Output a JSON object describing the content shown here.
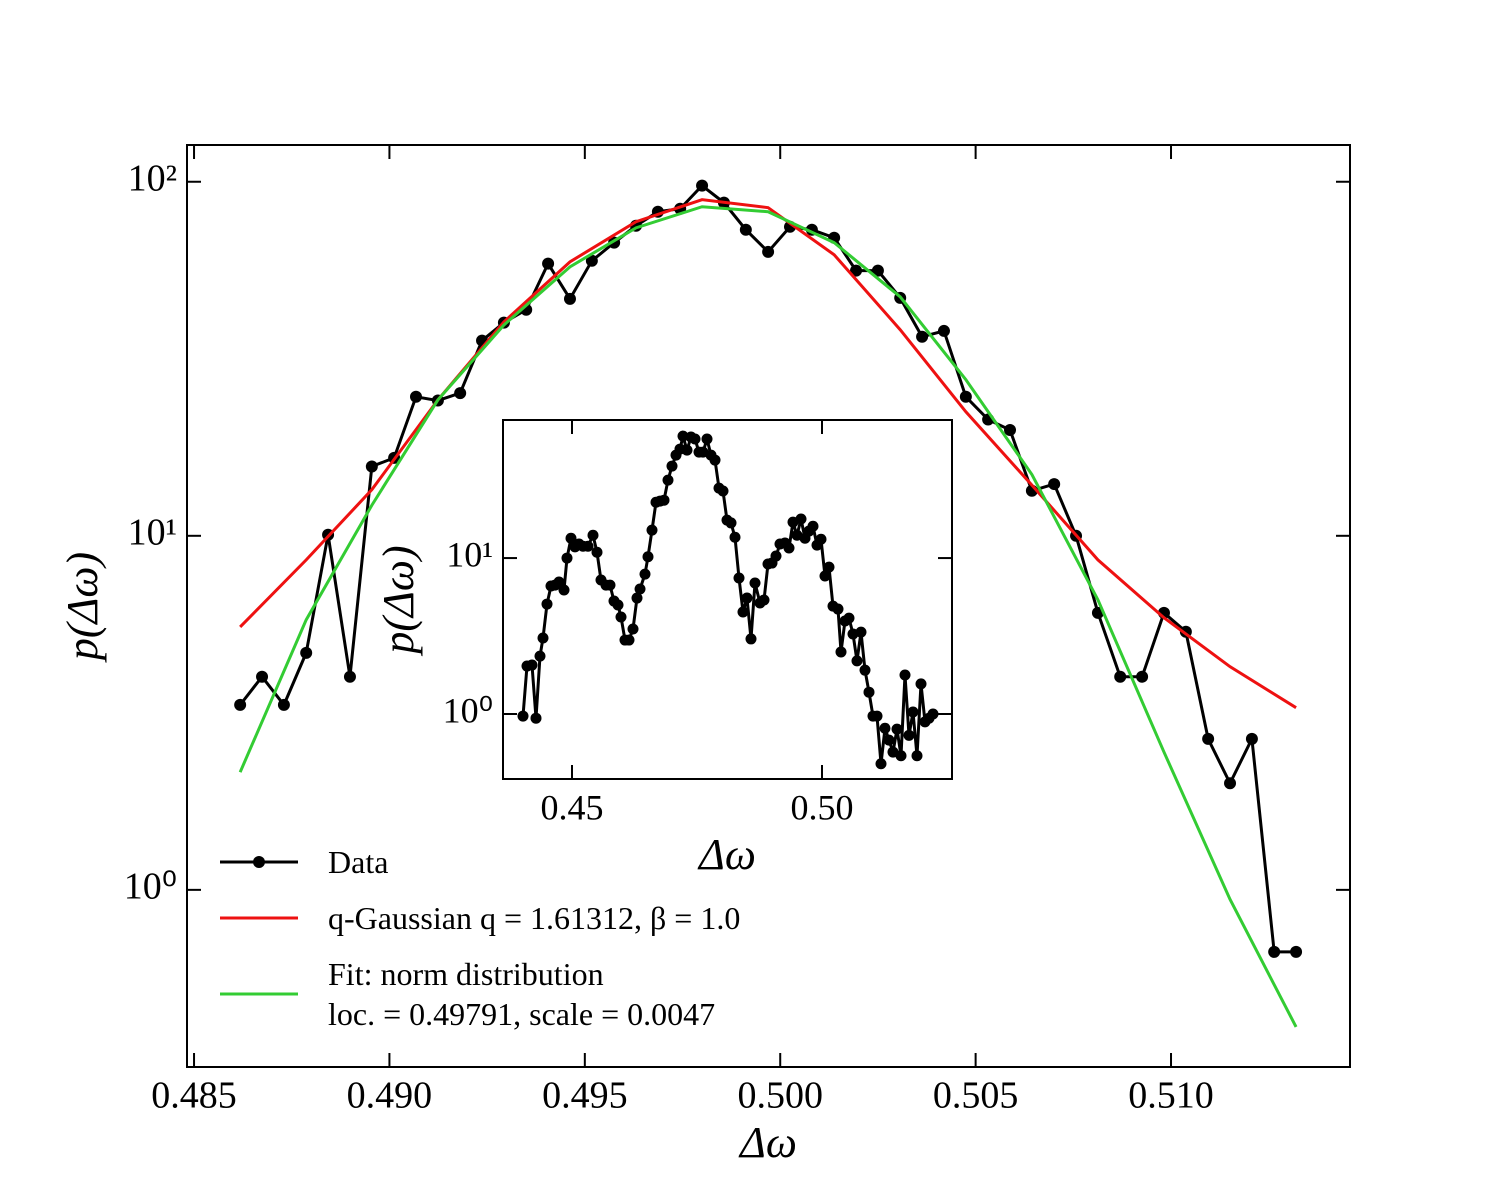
{
  "chart_data": [
    {
      "type": "line",
      "xlabel": "Δω",
      "ylabel": "p(Δω)",
      "yscale": "log",
      "legend": "lower left",
      "xlim": [
        0.48482,
        0.51458
      ],
      "ylim": [
        0.316,
        127
      ],
      "xticks": [
        0.485,
        {
          "value": 0.49,
          "label": "0.490"
        },
        0.495,
        {
          "value": 0.5,
          "label": "0.500"
        },
        0.505,
        {
          "value": 0.51,
          "label": "0.510"
        }
      ],
      "yticks": [
        {
          "value": 1,
          "label": "10⁰"
        },
        {
          "value": 10,
          "label": "10¹"
        },
        {
          "value": 100,
          "label": "10²"
        }
      ],
      "series": [
        {
          "name": "Data",
          "color": "#000000",
          "markers": true,
          "x": [
            0.48618,
            0.48674,
            0.4873,
            0.48787,
            0.48843,
            0.48899,
            0.48955,
            0.49012,
            0.49068,
            0.49124,
            0.49181,
            0.49237,
            0.49293,
            0.4935,
            0.49406,
            0.49462,
            0.49518,
            0.49575,
            0.49631,
            0.49687,
            0.49744,
            0.498,
            0.49856,
            0.49912,
            0.49969,
            0.50025,
            0.50081,
            0.50138,
            0.50194,
            0.5025,
            0.50307,
            0.50363,
            0.50419,
            0.50475,
            0.50532,
            0.50588,
            0.50644,
            0.50701,
            0.50757,
            0.50813,
            0.5087,
            0.50926,
            0.50982,
            0.51038,
            0.51095,
            0.51151,
            0.51207,
            0.51264,
            0.5132
          ],
          "values": [
            3.33,
            4.0,
            3.33,
            4.67,
            10.07,
            4.0,
            15.7,
            16.6,
            24.7,
            24.1,
            25.3,
            35.6,
            40.0,
            43.5,
            58.7,
            46.7,
            59.8,
            67.3,
            75.1,
            82.3,
            83.9,
            97.5,
            87.3,
            73.2,
            63.4,
            74.6,
            73.2,
            69.5,
            56.1,
            56.1,
            47.0,
            36.5,
            37.9,
            24.7,
            21.3,
            19.9,
            13.4,
            14.0,
            10.0,
            6.06,
            4.0,
            4.0,
            6.06,
            5.36,
            2.67,
            2.0,
            2.67,
            0.668,
            0.668
          ]
        },
        {
          "name": "q-Gaussian q = 1.61312, β = 1.0",
          "color": "#ee1111",
          "markers": false,
          "x": [
            0.48618,
            0.48787,
            0.48955,
            0.49124,
            0.49293,
            0.49462,
            0.49631,
            0.498,
            0.49969,
            0.50138,
            0.50307,
            0.50475,
            0.50644,
            0.50813,
            0.50982,
            0.51151,
            0.5132
          ],
          "values": [
            5.53,
            8.55,
            13.5,
            24.2,
            40.2,
            59.4,
            77.1,
            89.0,
            84.5,
            62.2,
            38.2,
            22.4,
            13.9,
            8.55,
            5.87,
            4.27,
            3.27
          ]
        },
        {
          "name": "Fit: norm distribution\nloc. = 0.49791, scale = 0.0047",
          "color": "#33cc33",
          "markers": false,
          "x": [
            0.48618,
            0.48787,
            0.48955,
            0.49124,
            0.49293,
            0.49462,
            0.49631,
            0.498,
            0.49969,
            0.50138,
            0.50307,
            0.50475,
            0.50644,
            0.50813,
            0.50982,
            0.51151,
            0.5132
          ],
          "values": [
            2.15,
            5.79,
            12.2,
            24.2,
            39.4,
            57.5,
            74.1,
            85.0,
            82.3,
            67.3,
            47.3,
            27.6,
            14.9,
            6.59,
            2.45,
            0.94,
            0.41
          ]
        }
      ]
    },
    {
      "type": "line",
      "xlabel": "Δω",
      "ylabel": "p(Δω)",
      "yscale": "log",
      "xlim": [
        0.4362,
        0.526
      ],
      "ylim": [
        0.383,
        76.8
      ],
      "xticks": [
        0.45,
        {
          "value": 0.5,
          "label": "0.50"
        }
      ],
      "yticks": [
        {
          "value": 1,
          "label": "10⁰"
        },
        {
          "value": 10,
          "label": "10¹"
        }
      ],
      "series": [
        {
          "color": "#000000",
          "markers": true,
          "x": [
            0.4402,
            0.441,
            0.442,
            0.4428,
            0.4436,
            0.4442,
            0.445,
            0.4458,
            0.4466,
            0.4474,
            0.4484,
            0.449,
            0.4498,
            0.4506,
            0.4514,
            0.4522,
            0.4532,
            0.4542,
            0.455,
            0.4558,
            0.4568,
            0.4576,
            0.4584,
            0.4592,
            0.4598,
            0.4606,
            0.4614,
            0.4622,
            0.463,
            0.4636,
            0.4646,
            0.4652,
            0.466,
            0.4668,
            0.4676,
            0.4684,
            0.4692,
            0.47,
            0.4708,
            0.4716,
            0.4722,
            0.473,
            0.4738,
            0.4746,
            0.4754,
            0.4762,
            0.477,
            0.4778,
            0.4786,
            0.4794,
            0.4802,
            0.481,
            0.4818,
            0.4826,
            0.4834,
            0.4842,
            0.485,
            0.4858,
            0.4866,
            0.4876,
            0.4884,
            0.4892,
            0.49,
            0.4908,
            0.4916,
            0.4926,
            0.4934,
            0.4942,
            0.495,
            0.4958,
            0.4966,
            0.4974,
            0.4982,
            0.499,
            0.4998,
            0.5006,
            0.5014,
            0.5022,
            0.5032,
            0.5038,
            0.5046,
            0.5054,
            0.5062,
            0.507,
            0.5078,
            0.5086,
            0.5094,
            0.5102,
            0.511,
            0.5118,
            0.5126,
            0.5134,
            0.5142,
            0.515,
            0.5158,
            0.5166,
            0.5174,
            0.5182,
            0.519,
            0.5198,
            0.5206,
            0.5214,
            0.5222
          ],
          "values": [
            0.97,
            2.03,
            2.06,
            0.94,
            2.35,
            3.07,
            5.07,
            6.62,
            6.71,
            7.02,
            6.24,
            10.0,
            13.4,
            11.8,
            12.3,
            11.9,
            11.9,
            14.0,
            10.9,
            7.23,
            6.71,
            6.71,
            5.3,
            5.0,
            4.19,
            2.98,
            2.98,
            3.51,
            5.54,
            6.33,
            7.89,
            10.2,
            15.1,
            22.8,
            23.2,
            23.5,
            31.6,
            38.9,
            45.7,
            50.0,
            60.5,
            49.2,
            59.7,
            58.0,
            47.8,
            47.8,
            58.0,
            45.7,
            42.5,
            28.1,
            26.9,
            17.5,
            16.8,
            13.6,
            7.45,
            4.51,
            5.54,
            3.03,
            6.92,
            5.15,
            5.38,
            9.16,
            9.29,
            10.3,
            12.3,
            12.5,
            11.6,
            17.0,
            14.0,
            17.8,
            13.4,
            14.9,
            16.0,
            12.1,
            13.2,
            7.67,
            8.75,
            4.92,
            4.71,
            2.5,
            3.95,
            4.12,
            3.26,
            2.19,
            3.35,
            1.91,
            1.38,
            0.97,
            0.97,
            0.48,
            0.81,
            0.68,
            0.57,
            0.8,
            0.54,
            1.78,
            0.73,
            1.03,
            0.54,
            1.56,
            0.89,
            0.94,
            1.0
          ]
        }
      ]
    }
  ]
}
